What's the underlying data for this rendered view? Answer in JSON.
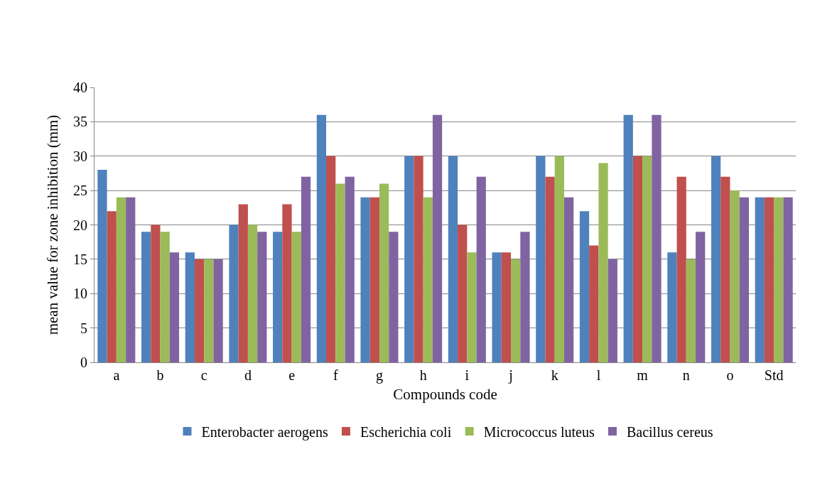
{
  "chart_data": {
    "type": "bar",
    "xlabel": "Compounds code",
    "ylabel": "mean value for zone inhibition (mm)",
    "categories": [
      "a",
      "b",
      "c",
      "d",
      "e",
      "f",
      "g",
      "h",
      "i",
      "j",
      "k",
      "l",
      "m",
      "n",
      "o",
      "Std"
    ],
    "series": [
      {
        "name": "Enterobacter aerogens",
        "color": "#4f81bd",
        "values": [
          28,
          19,
          16,
          20,
          19,
          36,
          24,
          30,
          30,
          16,
          30,
          22,
          36,
          16,
          30,
          24
        ]
      },
      {
        "name": "Escherichia coli",
        "color": "#c0504d",
        "values": [
          22,
          20,
          15,
          23,
          23,
          30,
          24,
          30,
          20,
          16,
          27,
          17,
          30,
          27,
          27,
          24
        ]
      },
      {
        "name": "Micrococcus luteus",
        "color": "#9bbb59",
        "values": [
          24,
          19,
          15,
          20,
          19,
          26,
          26,
          24,
          16,
          15,
          30,
          29,
          30,
          15,
          25,
          24
        ]
      },
      {
        "name": "Bacillus cereus",
        "color": "#8064a2",
        "values": [
          24,
          16,
          15,
          19,
          27,
          27,
          19,
          36,
          27,
          19,
          24,
          15,
          36,
          19,
          24,
          24
        ]
      }
    ],
    "ylim": [
      0,
      40
    ],
    "yticks": [
      0,
      5,
      10,
      15,
      20,
      25,
      30,
      35,
      40
    ],
    "grid": "y",
    "legend": "bottom"
  }
}
